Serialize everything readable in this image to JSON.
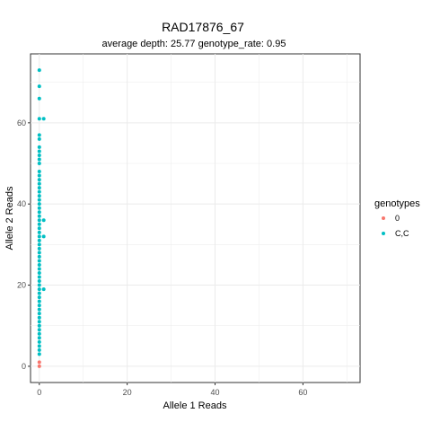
{
  "chart_data": {
    "type": "scatter",
    "title": "RAD17876_67",
    "subtitle": "average depth:  25.77  genotype_rate:  0.95",
    "xlabel": "Allele 1 Reads",
    "ylabel": "Allele 2 Reads",
    "xlim": [
      -2,
      73
    ],
    "ylim": [
      -4,
      77
    ],
    "x_ticks": [
      0,
      20,
      40,
      60
    ],
    "y_ticks": [
      0,
      20,
      40,
      60
    ],
    "grid": true,
    "legend": {
      "title": "genotypes",
      "placement": "right",
      "entries": [
        {
          "label": "0",
          "color": "#F8766D"
        },
        {
          "label": "C,C",
          "color": "#00BFC4"
        }
      ]
    },
    "series": [
      {
        "name": "0",
        "color": "#F8766D",
        "points": [
          [
            0,
            0
          ],
          [
            0,
            1
          ]
        ]
      },
      {
        "name": "C,C",
        "color": "#00BFC4",
        "points": [
          [
            0,
            3
          ],
          [
            0,
            4
          ],
          [
            0,
            5
          ],
          [
            0,
            6
          ],
          [
            0,
            7
          ],
          [
            0,
            8
          ],
          [
            0,
            9
          ],
          [
            0,
            10
          ],
          [
            0,
            11
          ],
          [
            0,
            12
          ],
          [
            0,
            13
          ],
          [
            0,
            14
          ],
          [
            0,
            15
          ],
          [
            0,
            16
          ],
          [
            0,
            17
          ],
          [
            0,
            18
          ],
          [
            0,
            19
          ],
          [
            0,
            20
          ],
          [
            0,
            21
          ],
          [
            0,
            22
          ],
          [
            0,
            23
          ],
          [
            0,
            24
          ],
          [
            0,
            25
          ],
          [
            0,
            26
          ],
          [
            0,
            27
          ],
          [
            0,
            28
          ],
          [
            0,
            29
          ],
          [
            0,
            30
          ],
          [
            0,
            31
          ],
          [
            0,
            32
          ],
          [
            0,
            33
          ],
          [
            0,
            34
          ],
          [
            0,
            35
          ],
          [
            0,
            36
          ],
          [
            0,
            37
          ],
          [
            0,
            38
          ],
          [
            0,
            39
          ],
          [
            0,
            40
          ],
          [
            0,
            41
          ],
          [
            0,
            42
          ],
          [
            0,
            43
          ],
          [
            0,
            44
          ],
          [
            0,
            45
          ],
          [
            0,
            46
          ],
          [
            0,
            47
          ],
          [
            0,
            48
          ],
          [
            0,
            50
          ],
          [
            0,
            51
          ],
          [
            0,
            52
          ],
          [
            0,
            53
          ],
          [
            0,
            54
          ],
          [
            0,
            56
          ],
          [
            0,
            57
          ],
          [
            0,
            61
          ],
          [
            0,
            66
          ],
          [
            0,
            69
          ],
          [
            0,
            73
          ],
          [
            1,
            19
          ],
          [
            1,
            32
          ],
          [
            1,
            36
          ],
          [
            1,
            61
          ]
        ]
      }
    ]
  }
}
